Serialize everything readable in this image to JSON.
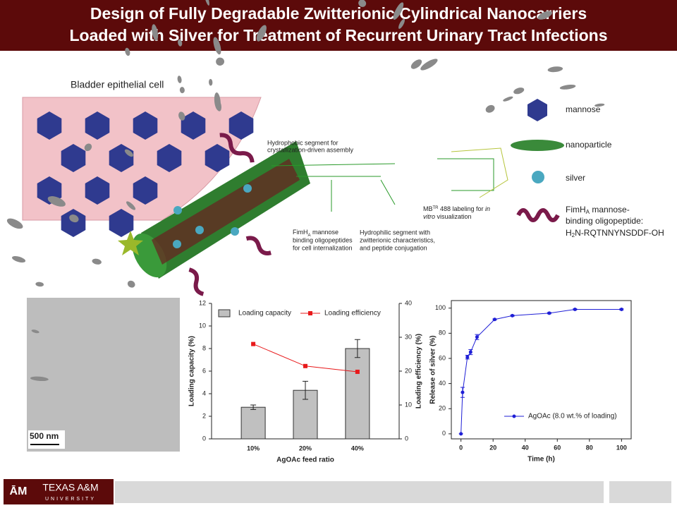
{
  "header": {
    "title_lines": [
      "Design of Fully Degradable Zwitterionic Cylindrical Nanocarriers",
      "Loaded with Silver for Treatment of Recurrent Urinary Tract Infections"
    ]
  },
  "illustration": {
    "cell_label": "Bladder epithelial cell",
    "annotations": [
      {
        "lines": [
          "Hydrophobic segment for",
          "crystallization-driven assembly"
        ]
      },
      {
        "lines": [
          "FimH",
          "A",
          " mannose",
          "binding oligopeptides",
          "for cell internalization"
        ]
      },
      {
        "lines": [
          "Hydrophilic segment with",
          "zwitterionic characteristics,",
          "and peptide conjugation"
        ]
      },
      {
        "lines": [
          "MB",
          "TR",
          " 488 labeling for ",
          "in",
          "vitro",
          " visualization"
        ]
      }
    ]
  },
  "legend": {
    "mannose": "mannose",
    "nanoparticle": "nanoparticle",
    "silver": "silver",
    "peptide": {
      "main": "FimH",
      "sub": "A",
      "rest": " mannose-",
      "line2": "binding oligopeptide:",
      "seq_pre": "H",
      "seq_sub": "2",
      "seq_rest": "N-RQTNNYNSDDF-OH"
    }
  },
  "tem_image": {
    "scale_bar": "500 nm"
  },
  "chart_data": [
    {
      "type": "bar",
      "x_label": "AgOAc feed ratio",
      "y_label": "Loading capacity (%)",
      "y2_label": "Loading efficiency (%)",
      "categories": [
        "10%",
        "20%",
        "40%"
      ],
      "series": [
        {
          "name": "Loading capacity",
          "color": "#c0c0c0",
          "values": [
            2.8,
            4.3,
            8.0
          ],
          "errors": [
            0.2,
            0.8,
            0.8
          ]
        },
        {
          "name": "Loading efficiency",
          "color": "#e8191b",
          "axis": "y2",
          "values": [
            28,
            21.5,
            19.8
          ]
        }
      ],
      "ylim": [
        0,
        12
      ],
      "yticks": [
        0,
        2,
        4,
        6,
        8,
        10,
        12
      ],
      "y2lim": [
        0,
        40
      ],
      "y2ticks": [
        0,
        10,
        20,
        30,
        40
      ],
      "legend": "top"
    },
    {
      "type": "line",
      "x_label": "Time (h)",
      "y_label": "Release of silver (%)",
      "x": [
        0,
        1,
        4,
        6,
        10,
        21,
        32,
        55,
        71,
        100
      ],
      "series": [
        {
          "name": "AgOAc (8.0 wt.% of loading)",
          "color": "#1f1fd6",
          "values": [
            0,
            33,
            61,
            65,
            77,
            91,
            94,
            96,
            99,
            99
          ],
          "errors": [
            0,
            4,
            1.5,
            2,
            2,
            0.5,
            0.5,
            0.5,
            0.5,
            0.5
          ]
        }
      ],
      "xlim": [
        -6,
        106
      ],
      "xticks": [
        0,
        20,
        40,
        60,
        80,
        100
      ],
      "ylim": [
        -4,
        106
      ],
      "yticks": [
        0,
        20,
        40,
        60,
        80,
        100
      ],
      "legend": "lower-right"
    }
  ]
}
